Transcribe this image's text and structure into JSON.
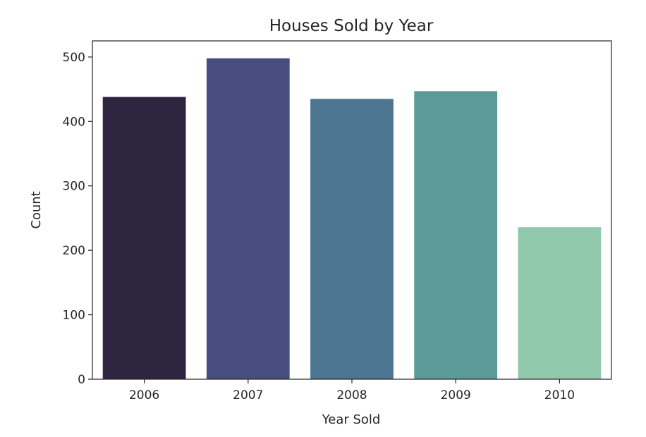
{
  "chart_data": {
    "type": "bar",
    "title": "Houses Sold by Year",
    "xlabel": "Year Sold",
    "ylabel": "Count",
    "categories": [
      "2006",
      "2007",
      "2008",
      "2009",
      "2010"
    ],
    "values": [
      438,
      498,
      435,
      447,
      236
    ],
    "colors": [
      "#2e2540",
      "#474e7f",
      "#4c7591",
      "#5c9a9a",
      "#8fc8ab"
    ],
    "ylim": [
      0,
      525
    ],
    "yticks": [
      0,
      100,
      200,
      300,
      400,
      500
    ],
    "grid": false,
    "legend": "none"
  }
}
